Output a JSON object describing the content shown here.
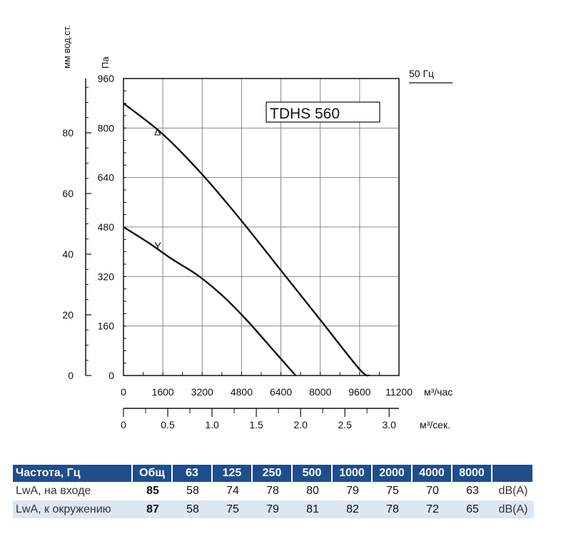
{
  "chart_data": {
    "type": "line",
    "title": "TDHS 560",
    "frequency_label": "50 Гц",
    "y_label_pa": "Па",
    "y_label_mm": "мм вод.ст.",
    "x_label_m3h": "м³/час",
    "x_label_m3s": "м³/сек.",
    "x_ticks": [
      "0",
      "1600",
      "3200",
      "4800",
      "6400",
      "8000",
      "9600",
      "11200"
    ],
    "x_ticks_m3s": [
      "0",
      "0.5",
      "1.0",
      "1.5",
      "2.0",
      "2.5",
      "3.0"
    ],
    "y_ticks_pa": [
      "0",
      "160",
      "320",
      "480",
      "640",
      "800",
      "960"
    ],
    "y_ticks_mm": [
      "0",
      "20",
      "40",
      "60",
      "80"
    ],
    "xlim": [
      0,
      11200
    ],
    "ylim": [
      0,
      960
    ],
    "grid": true,
    "series": [
      {
        "name": "Δ",
        "x": [
          0,
          1600,
          3200,
          4800,
          6400,
          8000,
          9600,
          10000
        ],
        "y": [
          880,
          780,
          650,
          500,
          340,
          180,
          20,
          0
        ]
      },
      {
        "name": "Y",
        "x": [
          0,
          1000,
          2000,
          3000,
          4000,
          5000,
          6000,
          7000
        ],
        "y": [
          480,
          430,
          375,
          325,
          260,
          180,
          90,
          0
        ]
      }
    ]
  },
  "table": {
    "header": [
      "Частота, Гц",
      "Общ",
      "63",
      "125",
      "250",
      "500",
      "1000",
      "2000",
      "4000",
      "8000"
    ],
    "rows": [
      {
        "label": "LwA, на входе",
        "total": "85",
        "values": [
          "58",
          "74",
          "78",
          "80",
          "79",
          "75",
          "70",
          "63"
        ],
        "unit": "dB(A)"
      },
      {
        "label": "LwA, к окружению",
        "total": "87",
        "values": [
          "58",
          "75",
          "79",
          "81",
          "82",
          "78",
          "72",
          "65"
        ],
        "unit": "dB(A)"
      }
    ]
  }
}
